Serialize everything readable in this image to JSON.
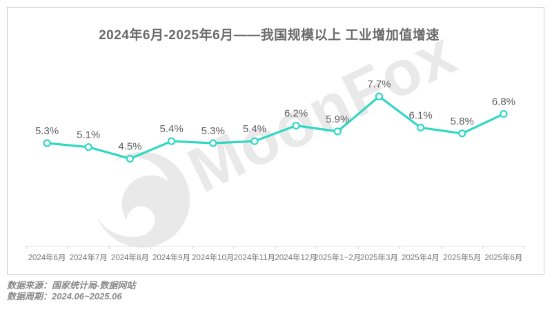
{
  "chart_data": {
    "type": "line",
    "title": "2024年6月-2025年6月——我国规模以上 工业增加值增速",
    "categories": [
      "2024年6月",
      "2024年7月",
      "2024年8月",
      "2024年9月",
      "2024年10月",
      "2024年11月",
      "2024年12月",
      "2025年1~2月",
      "2025年3月",
      "2025年4月",
      "2025年5月",
      "2025年6月"
    ],
    "values": [
      5.3,
      5.1,
      4.5,
      5.4,
      5.3,
      5.4,
      6.2,
      5.9,
      7.7,
      6.1,
      5.8,
      6.8
    ],
    "labels": [
      "5.3%",
      "5.1%",
      "4.5%",
      "5.4%",
      "5.3%",
      "5.4%",
      "6.2%",
      "5.9%",
      "7.7%",
      "6.1%",
      "5.8%",
      "6.8%"
    ],
    "xlabel": "",
    "ylabel": "",
    "ylim": [
      0,
      10
    ],
    "grid": false,
    "legend": false,
    "line_color": "#30d7c4",
    "marker_fill": "#ffffff",
    "value_label_color": "#5f5f5f",
    "axis_label_color": "#757575",
    "axis_line_color": "#e2e2e2",
    "tick_color": "#cfcfcf"
  },
  "watermark": {
    "text": "MoonFox",
    "logo": "moonfox-crescent-logo",
    "color": "#e9e9e9"
  },
  "footer": {
    "source": "数据来源：国家统计局-数据网站",
    "period": "数据周期：2024.06~2025.06"
  }
}
